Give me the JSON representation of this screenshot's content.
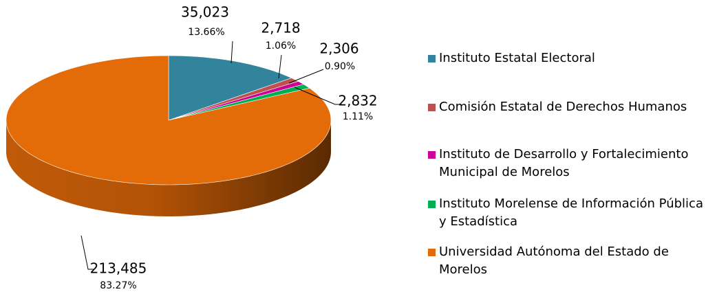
{
  "chart_data": {
    "type": "pie3d",
    "categories": [
      "Instituto Estatal Electoral",
      "Comisión Estatal de Derechos Humanos",
      "Instituto de Desarrollo y Fortalecimiento Municipal de Morelos",
      "Instituto Morelense de Información Pública y Estadística",
      "Universidad Autónoma del Estado de Morelos"
    ],
    "values": [
      35023,
      2718,
      2306,
      2832,
      213485
    ],
    "value_labels": [
      "35,023",
      "2,718",
      "2,306",
      "2,832",
      "213,485"
    ],
    "percent_labels": [
      "13.66%",
      "1.06%",
      "0.90%",
      "1.11%",
      "83.27%"
    ],
    "colors": [
      "#31849b",
      "#c0504d",
      "#cc0099",
      "#00b050",
      "#e36c09"
    ],
    "legend": "right"
  }
}
